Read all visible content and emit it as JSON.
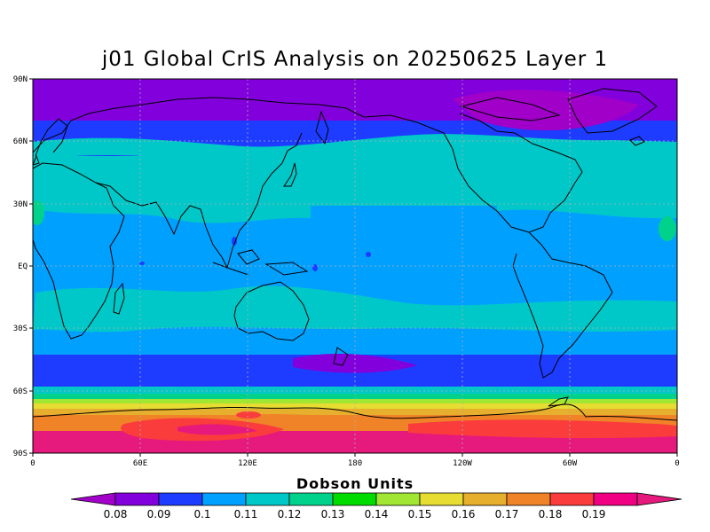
{
  "title": "j01 Global CrIS Analysis on 20250625 Layer 1",
  "lat_labels": [
    "90N",
    "60N",
    "30N",
    "EQ",
    "30S",
    "60S",
    "90S"
  ],
  "lon_labels": [
    "0",
    "60E",
    "120E",
    "180",
    "120W",
    "60W",
    "0"
  ],
  "colorbar": {
    "title": "Dobson Units",
    "labels": [
      "0.08",
      "0.09",
      "0.1",
      "0.11",
      "0.12",
      "0.13",
      "0.14",
      "0.15",
      "0.16",
      "0.17",
      "0.18",
      "0.19"
    ],
    "colors": [
      "#a000c8",
      "#8200dc",
      "#1e3cff",
      "#00a0ff",
      "#00c8c8",
      "#00d28c",
      "#00dc00",
      "#a0e632",
      "#e6dc32",
      "#e6af2d",
      "#f08228",
      "#fa3c3c",
      "#f00082",
      "#e6197d"
    ]
  }
}
